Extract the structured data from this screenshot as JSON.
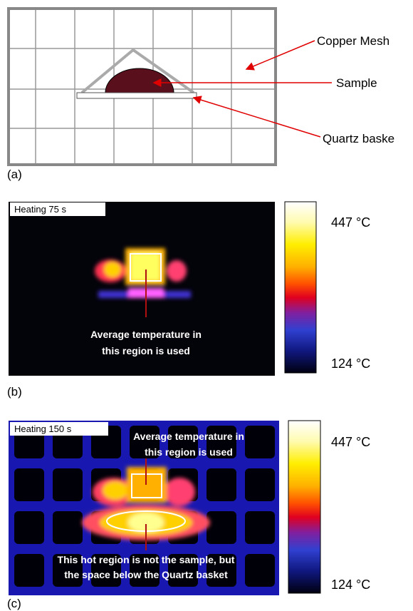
{
  "panels": [
    {
      "tag": "(a)",
      "labels": [
        "Copper Mesh",
        "Sample",
        "Quartz baske"
      ]
    },
    {
      "tag": "(b)",
      "caption": "Heating 75 s",
      "annotation": [
        "Average temperature in",
        "this region is used"
      ],
      "scale_max": "447 °C",
      "scale_min": "124 °C"
    },
    {
      "tag": "(c)",
      "caption": "Heating 150 s",
      "annotation_top": [
        "Average temperature in",
        "this region is used"
      ],
      "annotation_bottom": [
        "This hot region is not the sample, but",
        "the space below the Quartz basket"
      ],
      "scale_max": "447 °C",
      "scale_min": "124 °C"
    }
  ]
}
